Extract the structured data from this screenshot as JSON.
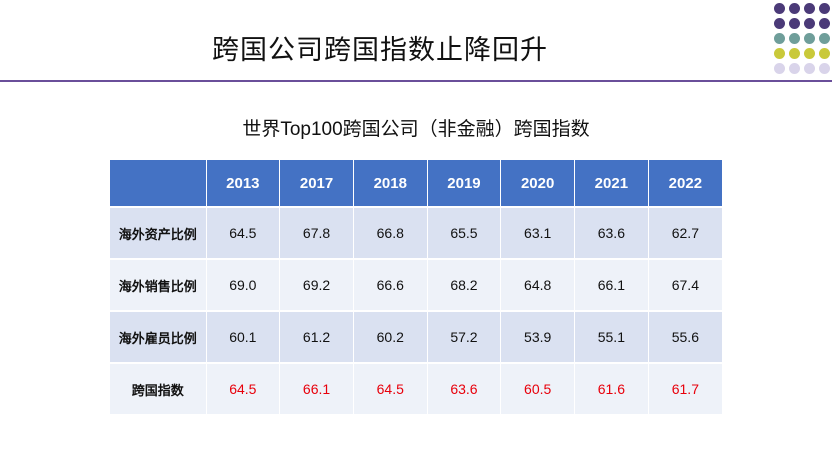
{
  "slide": {
    "title": "跨国公司跨国指数止降回升"
  },
  "table": {
    "title": "世界Top100跨国公司（非金融）跨国指数",
    "corner": "",
    "years": [
      "2013",
      "2017",
      "2018",
      "2019",
      "2020",
      "2021",
      "2022"
    ],
    "rows": [
      {
        "label": "海外资产比例",
        "values": [
          "64.5",
          "67.8",
          "66.8",
          "65.5",
          "63.1",
          "63.6",
          "62.7"
        ]
      },
      {
        "label": "海外销售比例",
        "values": [
          "69.0",
          "69.2",
          "66.6",
          "68.2",
          "64.8",
          "66.1",
          "67.4"
        ]
      },
      {
        "label": "海外雇员比例",
        "values": [
          "60.1",
          "61.2",
          "60.2",
          "57.2",
          "53.9",
          "55.1",
          "55.6"
        ]
      },
      {
        "label": "跨国指数",
        "values": [
          "64.5",
          "66.1",
          "64.5",
          "63.6",
          "60.5",
          "61.6",
          "61.7"
        ]
      }
    ]
  },
  "colors": {
    "header_bg": "#4472c4",
    "row_light": "#dae1f1",
    "row_lighter": "#eef2f9",
    "index_value": "#e8000b",
    "divider": "#6a4f9a",
    "dot_purple": "#4b3a78",
    "dot_teal": "#6f9e9a",
    "dot_yellow": "#c9c93a",
    "dot_lilac": "#d9d4ea"
  }
}
